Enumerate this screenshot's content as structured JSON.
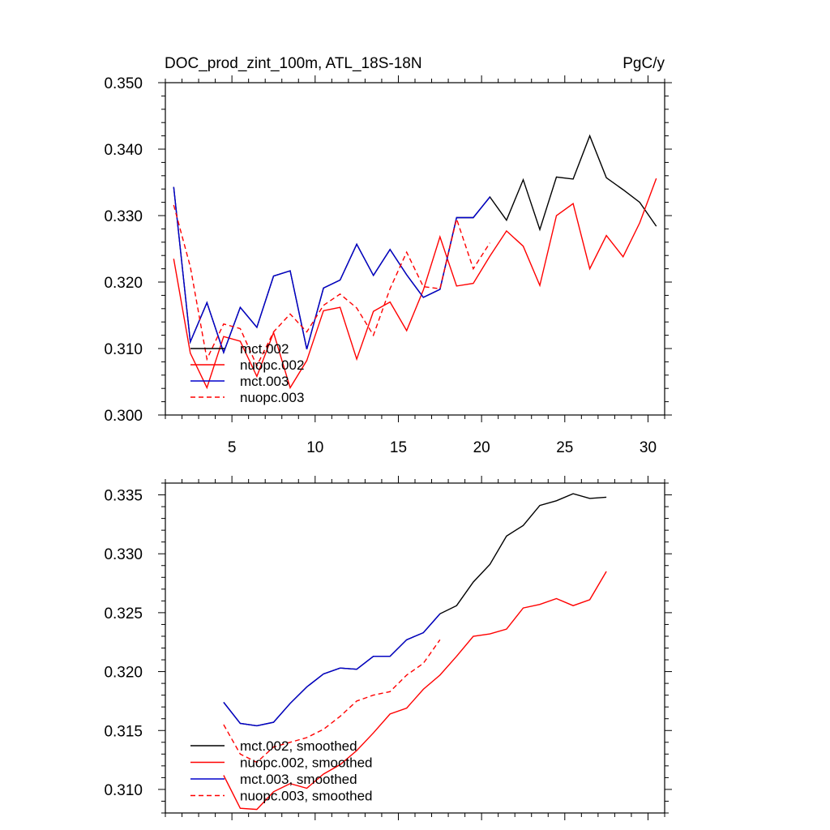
{
  "chart_data": [
    {
      "type": "line",
      "title": "DOC_prod_zint_100m, ATL_18S-18N",
      "units": "PgC/y",
      "xlim": [
        1,
        31
      ],
      "ylim": [
        0.3,
        0.35
      ],
      "x_ticks": [
        5,
        10,
        15,
        20,
        25,
        30
      ],
      "y_ticks": [
        0.3,
        0.31,
        0.32,
        0.33,
        0.34,
        0.35
      ],
      "y_tick_labels": [
        "0.300",
        "0.310",
        "0.320",
        "0.330",
        "0.340",
        "0.350"
      ],
      "legend_position": "lower-left",
      "series": [
        {
          "name": "mct.002",
          "color": "#000000",
          "dash": "solid",
          "x": [
            1.5,
            2.5,
            3.5,
            4.5,
            5.5,
            6.5,
            7.5,
            8.5,
            9.5,
            10.5,
            11.5,
            12.5,
            13.5,
            14.5,
            15.5,
            16.5,
            17.5,
            18.5,
            19.5,
            20.5,
            21.5,
            22.5,
            23.5,
            24.5,
            25.5,
            26.5,
            27.5,
            28.5,
            29.5,
            30.5
          ],
          "y": [
            0.3343,
            0.311,
            0.3169,
            0.3094,
            0.3162,
            0.3132,
            0.3209,
            0.3217,
            0.3099,
            0.3191,
            0.3203,
            0.3257,
            0.321,
            0.3249,
            0.3211,
            0.3177,
            0.3189,
            0.3297,
            0.3297,
            0.3328,
            0.3293,
            0.3354,
            0.3279,
            0.3358,
            0.3355,
            0.342,
            0.3357,
            0.3339,
            0.332,
            0.3284
          ]
        },
        {
          "name": "nuopc.002",
          "color": "#ff0000",
          "dash": "solid",
          "x": [
            1.5,
            2.5,
            3.5,
            4.5,
            5.5,
            6.5,
            7.5,
            8.5,
            9.5,
            10.5,
            11.5,
            12.5,
            13.5,
            14.5,
            15.5,
            16.5,
            17.5,
            18.5,
            19.5,
            20.5,
            21.5,
            22.5,
            23.5,
            24.5,
            25.5,
            26.5,
            27.5,
            28.5,
            29.5,
            30.5
          ],
          "y": [
            0.3235,
            0.3093,
            0.3041,
            0.3118,
            0.3111,
            0.3058,
            0.3124,
            0.3041,
            0.3082,
            0.3157,
            0.3162,
            0.3084,
            0.3156,
            0.317,
            0.3127,
            0.3188,
            0.3268,
            0.3194,
            0.3198,
            0.3239,
            0.3277,
            0.3254,
            0.3195,
            0.33,
            0.3318,
            0.322,
            0.327,
            0.3238,
            0.3289,
            0.3356
          ]
        },
        {
          "name": "mct.003",
          "color": "#0000cc",
          "dash": "solid",
          "x": [
            1.5,
            2.5,
            3.5,
            4.5,
            5.5,
            6.5,
            7.5,
            8.5,
            9.5,
            10.5,
            11.5,
            12.5,
            13.5,
            14.5,
            15.5,
            16.5,
            17.5,
            18.5,
            19.5,
            20.5
          ],
          "y": [
            0.3343,
            0.311,
            0.3169,
            0.3094,
            0.3162,
            0.3132,
            0.3209,
            0.3217,
            0.3099,
            0.3191,
            0.3203,
            0.3257,
            0.321,
            0.3249,
            0.3211,
            0.3177,
            0.3189,
            0.3297,
            0.3297,
            0.3328
          ]
        },
        {
          "name": "nuopc.003",
          "color": "#ff0000",
          "dash": "dashed",
          "x": [
            1.5,
            2.5,
            3.5,
            4.5,
            5.5,
            6.5,
            7.5,
            8.5,
            9.5,
            10.5,
            11.5,
            12.5,
            13.5,
            14.5,
            15.5,
            16.5,
            17.5,
            18.5,
            19.5,
            20.5
          ],
          "y": [
            0.3316,
            0.3223,
            0.3084,
            0.3137,
            0.313,
            0.3074,
            0.3125,
            0.3152,
            0.3125,
            0.3165,
            0.3182,
            0.3161,
            0.312,
            0.319,
            0.3245,
            0.3193,
            0.319,
            0.3295,
            0.322,
            0.3259
          ]
        }
      ]
    },
    {
      "type": "line",
      "xlim": [
        1,
        31
      ],
      "ylim": [
        0.308,
        0.336
      ],
      "x_ticks": [
        5,
        10,
        15,
        20,
        25,
        30
      ],
      "y_ticks": [
        0.31,
        0.315,
        0.32,
        0.325,
        0.33,
        0.335
      ],
      "y_tick_labels": [
        "0.310",
        "0.315",
        "0.320",
        "0.325",
        "0.330",
        "0.335"
      ],
      "legend_position": "lower-left",
      "series": [
        {
          "name": "mct.002, smoothed",
          "color": "#000000",
          "dash": "solid",
          "x": [
            4.5,
            5.5,
            6.5,
            7.5,
            8.5,
            9.5,
            10.5,
            11.5,
            12.5,
            13.5,
            14.5,
            15.5,
            16.5,
            17.5,
            18.5,
            19.5,
            20.5,
            21.5,
            22.5,
            23.5,
            24.5,
            25.5,
            26.5,
            27.5
          ],
          "y": [
            0.3174,
            0.3156,
            0.3154,
            0.3157,
            0.3173,
            0.3187,
            0.3198,
            0.3203,
            0.3202,
            0.3213,
            0.3213,
            0.3227,
            0.3233,
            0.3249,
            0.3256,
            0.3276,
            0.3291,
            0.3315,
            0.3324,
            0.3341,
            0.3345,
            0.3351,
            0.3347,
            0.3348
          ]
        },
        {
          "name": "nuopc.002, smoothed",
          "color": "#ff0000",
          "dash": "solid",
          "x": [
            4.5,
            5.5,
            6.5,
            7.5,
            8.5,
            9.5,
            10.5,
            11.5,
            12.5,
            13.5,
            14.5,
            15.5,
            16.5,
            17.5,
            18.5,
            19.5,
            20.5,
            21.5,
            22.5,
            23.5,
            24.5,
            25.5,
            26.5,
            27.5
          ],
          "y": [
            0.3112,
            0.3084,
            0.3083,
            0.3098,
            0.3105,
            0.3101,
            0.3113,
            0.3121,
            0.3133,
            0.3148,
            0.3164,
            0.3169,
            0.3185,
            0.3197,
            0.3213,
            0.323,
            0.3232,
            0.3236,
            0.3254,
            0.3257,
            0.3262,
            0.3256,
            0.3261,
            0.3285
          ]
        },
        {
          "name": "mct.003, smoothed",
          "color": "#0000cc",
          "dash": "solid",
          "x": [
            4.5,
            5.5,
            6.5,
            7.5,
            8.5,
            9.5,
            10.5,
            11.5,
            12.5,
            13.5,
            14.5,
            15.5,
            16.5,
            17.5
          ],
          "y": [
            0.3174,
            0.3156,
            0.3154,
            0.3157,
            0.3173,
            0.3187,
            0.3198,
            0.3203,
            0.3202,
            0.3213,
            0.3213,
            0.3227,
            0.3233,
            0.3249
          ]
        },
        {
          "name": "nuopc.003, smoothed",
          "color": "#ff0000",
          "dash": "dashed",
          "x": [
            4.5,
            5.5,
            6.5,
            7.5,
            8.5,
            9.5,
            10.5,
            11.5,
            12.5,
            13.5,
            14.5,
            15.5,
            16.5,
            17.5
          ],
          "y": [
            0.3155,
            0.313,
            0.3123,
            0.3136,
            0.314,
            0.3144,
            0.3151,
            0.3162,
            0.3175,
            0.318,
            0.3183,
            0.3197,
            0.3207,
            0.3227
          ]
        }
      ]
    }
  ]
}
